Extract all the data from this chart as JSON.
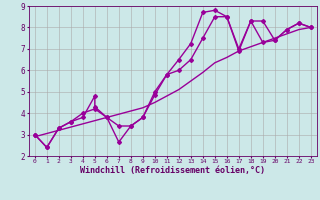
{
  "background_color": "#cce8e8",
  "grid_color": "#aaaaaa",
  "line_color": "#990099",
  "marker": "D",
  "marker_size": 2.0,
  "line_width": 1.0,
  "xlim": [
    -0.5,
    23.5
  ],
  "ylim": [
    2,
    9
  ],
  "xlabel": "Windchill (Refroidissement éolien,°C)",
  "xlabel_fontsize": 6.0,
  "xtick_fontsize": 4.5,
  "ytick_fontsize": 5.5,
  "series1_x": [
    0,
    1,
    2,
    3,
    4,
    5,
    5,
    6,
    7,
    8,
    9,
    10,
    11,
    12,
    13,
    14,
    15,
    16,
    17,
    18,
    19,
    20,
    21,
    22,
    23
  ],
  "series1_y": [
    3.0,
    2.4,
    3.3,
    3.6,
    3.8,
    4.8,
    4.3,
    3.8,
    2.65,
    3.4,
    3.8,
    4.85,
    5.8,
    6.5,
    7.25,
    8.7,
    8.8,
    8.5,
    6.9,
    8.3,
    8.3,
    7.4,
    7.9,
    8.2,
    8.0
  ],
  "series2_x": [
    0,
    1,
    2,
    3,
    4,
    5,
    6,
    7,
    8,
    9,
    10,
    11,
    12,
    13,
    14,
    15,
    16,
    17,
    18,
    19,
    20,
    21,
    22,
    23
  ],
  "series2_y": [
    3.0,
    2.4,
    3.3,
    3.6,
    4.0,
    4.2,
    3.8,
    3.4,
    3.4,
    3.8,
    5.0,
    5.8,
    6.0,
    6.5,
    7.5,
    8.5,
    8.5,
    7.0,
    8.3,
    7.3,
    7.4,
    7.9,
    8.2,
    8.0
  ],
  "series3_x": [
    0,
    1,
    2,
    3,
    4,
    5,
    6,
    7,
    8,
    9,
    10,
    11,
    12,
    13,
    14,
    15,
    16,
    17,
    18,
    19,
    20,
    21,
    22,
    23
  ],
  "series3_y": [
    2.9,
    3.05,
    3.2,
    3.35,
    3.5,
    3.65,
    3.8,
    3.95,
    4.1,
    4.25,
    4.5,
    4.8,
    5.1,
    5.5,
    5.9,
    6.35,
    6.6,
    6.9,
    7.1,
    7.3,
    7.5,
    7.7,
    7.9,
    8.0
  ]
}
